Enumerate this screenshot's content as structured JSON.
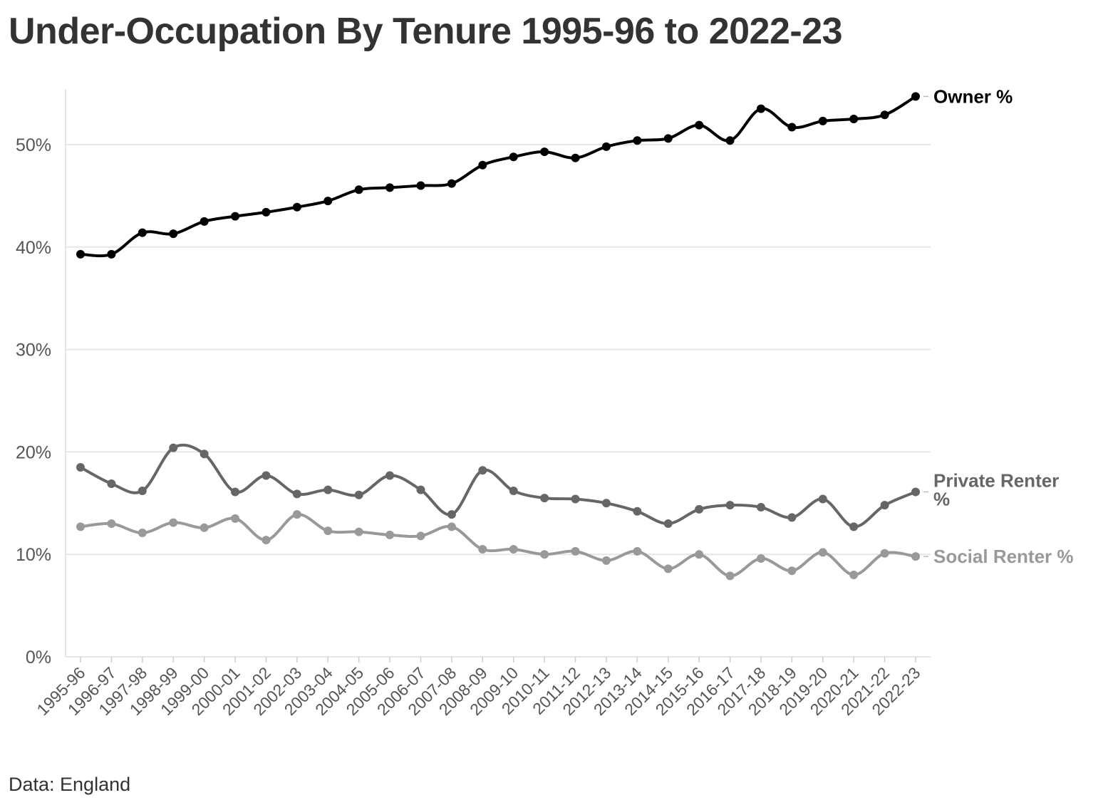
{
  "title": "Under-Occupation By Tenure 1995-96 to 2022-23",
  "footer": "Data: England",
  "chart_data": {
    "type": "line",
    "x": [
      "1995-96",
      "1996-97",
      "1997-98",
      "1998-99",
      "1999-00",
      "2000-01",
      "2001-02",
      "2002-03",
      "2003-04",
      "2004-05",
      "2005-06",
      "2006-07",
      "2007-08",
      "2008-09",
      "2009-10",
      "2010-11",
      "2011-12",
      "2012-13",
      "2013-14",
      "2014-15",
      "2015-16",
      "2016-17",
      "2017-18",
      "2018-19",
      "2019-20",
      "2020-21",
      "2021-22",
      "2022-23"
    ],
    "ylim": [
      0,
      55
    ],
    "yticks": [
      0,
      10,
      20,
      30,
      40,
      50
    ],
    "ytick_labels": [
      "0%",
      "10%",
      "20%",
      "30%",
      "40%",
      "50%"
    ],
    "grid": "horizontal",
    "legend": "direct labels at right end of lines",
    "series": [
      {
        "name": "Owner %",
        "label_lines": [
          "Owner %"
        ],
        "color": "#000000",
        "values": [
          39.3,
          39.3,
          41.4,
          41.3,
          42.5,
          43.0,
          43.4,
          43.9,
          44.5,
          45.6,
          45.8,
          46.0,
          46.2,
          48.0,
          48.8,
          49.3,
          48.7,
          49.8,
          50.4,
          50.6,
          51.9,
          50.4,
          53.5,
          51.7,
          52.3,
          52.5,
          52.9,
          54.7
        ]
      },
      {
        "name": "Private Renter %",
        "label_lines": [
          "Private Renter",
          "%"
        ],
        "color": "#666666",
        "values": [
          18.5,
          16.9,
          16.2,
          20.4,
          19.8,
          16.1,
          17.7,
          15.9,
          16.3,
          15.8,
          17.7,
          16.3,
          13.9,
          18.2,
          16.2,
          15.5,
          15.4,
          15.0,
          14.2,
          13.0,
          14.4,
          14.8,
          14.6,
          13.6,
          15.4,
          12.7,
          14.8,
          16.1
        ]
      },
      {
        "name": "Social Renter %",
        "label_lines": [
          "Social Renter %"
        ],
        "color": "#999999",
        "values": [
          12.7,
          13.0,
          12.1,
          13.1,
          12.6,
          13.5,
          11.4,
          13.9,
          12.3,
          12.2,
          11.9,
          11.8,
          12.7,
          10.5,
          10.5,
          10.0,
          10.3,
          9.4,
          10.3,
          8.6,
          10.0,
          7.9,
          9.6,
          8.4,
          10.2,
          8.0,
          10.1,
          9.8
        ]
      }
    ]
  }
}
